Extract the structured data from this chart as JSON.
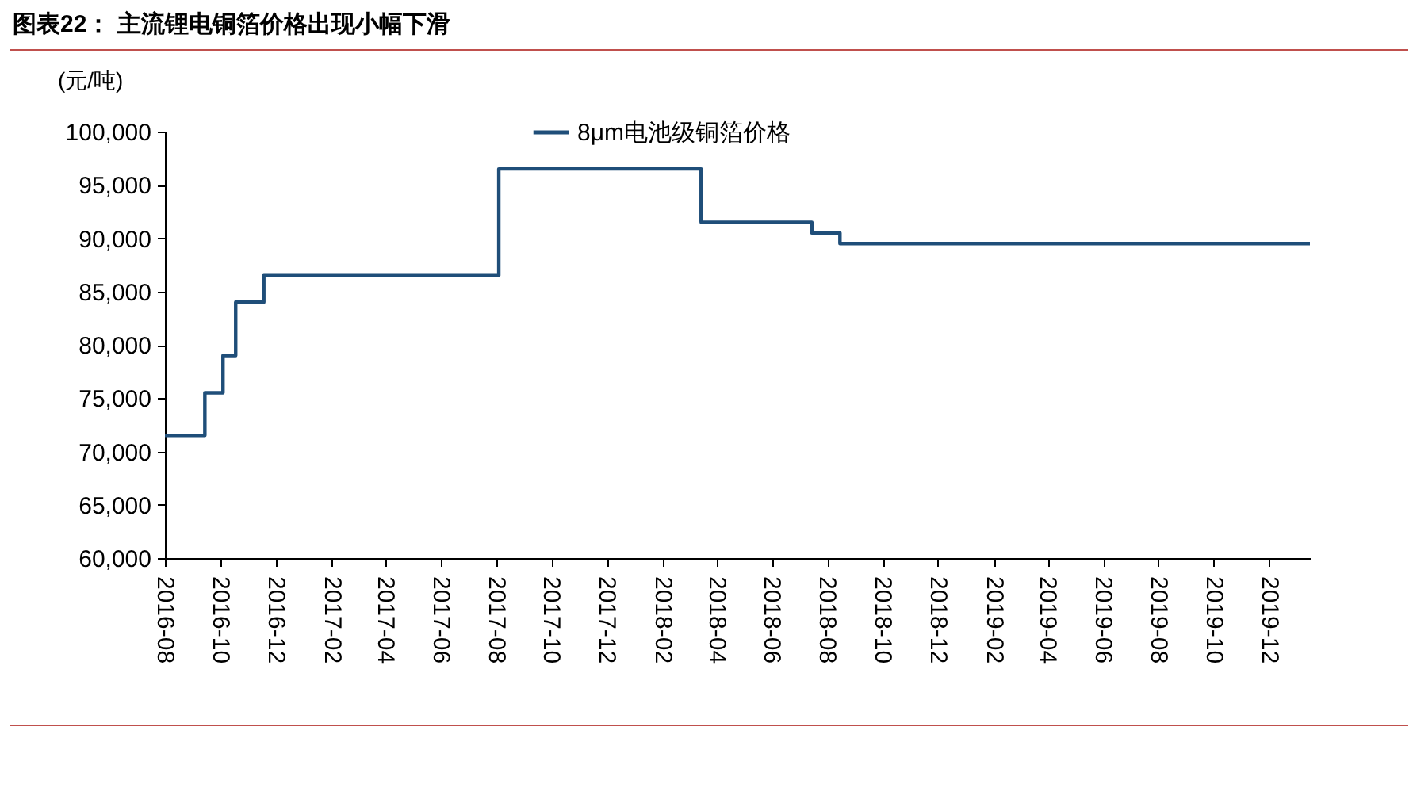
{
  "chart_data": {
    "type": "step",
    "title": "图表22：  主流锂电铜箔价格出现小幅下滑",
    "ylabel": "(元/吨)",
    "x": [
      "2016-08-01",
      "2016-09-14",
      "2016-10-04",
      "2016-10-18",
      "2016-11-18",
      "2017-08-04",
      "2018-03-15",
      "2018-07-15",
      "2018-08-15",
      "2020-01-15"
    ],
    "series": [
      {
        "name": "8μm电池级铜箔价格",
        "color": "#1f4e79",
        "values": [
          71500,
          75500,
          79000,
          84000,
          86500,
          96500,
          91500,
          90500,
          89500,
          89500
        ]
      }
    ],
    "xlim": [
      "2016-08-01",
      "2020-01-15"
    ],
    "xticks": [
      "2016-08",
      "2016-10",
      "2016-12",
      "2017-02",
      "2017-04",
      "2017-06",
      "2017-08",
      "2017-10",
      "2017-12",
      "2018-02",
      "2018-04",
      "2018-06",
      "2018-08",
      "2018-10",
      "2018-12",
      "2019-02",
      "2019-04",
      "2019-06",
      "2019-08",
      "2019-10",
      "2019-12"
    ],
    "ylim": [
      60000,
      100000
    ],
    "yticks": [
      {
        "value": 60000,
        "label": "60,000"
      },
      {
        "value": 65000,
        "label": "65,000"
      },
      {
        "value": 70000,
        "label": "70,000"
      },
      {
        "value": 75000,
        "label": "75,000"
      },
      {
        "value": 80000,
        "label": "80,000"
      },
      {
        "value": 85000,
        "label": "85,000"
      },
      {
        "value": 90000,
        "label": "90,000"
      },
      {
        "value": 95000,
        "label": "95,000"
      },
      {
        "value": 100000,
        "label": "100,000"
      }
    ],
    "legend": "top",
    "grid": false
  }
}
